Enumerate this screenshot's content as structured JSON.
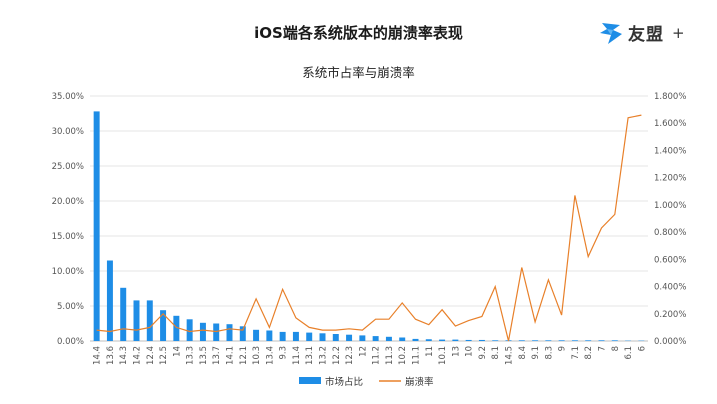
{
  "header": {
    "title": "iOS端各系统版本的崩溃率表现",
    "brand_name": "友盟",
    "brand_plus": "+"
  },
  "colors": {
    "bar": "#1e8de6",
    "line": "#e8802a",
    "grid": "#e4e4e4",
    "axis": "#bfbfbf",
    "brand_icon": "#1e8de6"
  },
  "icons": {
    "brand": "umeng-logo-icon"
  },
  "chart_data": {
    "type": "bar",
    "title": "系统市占率与崩溃率",
    "categories": [
      "14.4",
      "13.6",
      "14.3",
      "14.2",
      "12.4",
      "12.5",
      "14",
      "13.3",
      "13.5",
      "13.7",
      "14.1",
      "12.1",
      "10.3",
      "13.4",
      "9.3",
      "11.4",
      "13.1",
      "13.2",
      "12.2",
      "12.3",
      "12",
      "11.2",
      "11.3",
      "10.2",
      "11.1",
      "11",
      "10.1",
      "13",
      "10",
      "9.2",
      "8.1",
      "14.5",
      "8.4",
      "9.1",
      "8.3",
      "9",
      "7.1",
      "8.2",
      "7",
      "8",
      "6.1",
      "6"
    ],
    "series": [
      {
        "name": "市场占比",
        "type": "bar",
        "axis": "left",
        "values": [
          32.8,
          11.5,
          7.6,
          5.8,
          5.8,
          4.4,
          3.6,
          3.1,
          2.6,
          2.5,
          2.4,
          2.1,
          1.6,
          1.5,
          1.3,
          1.3,
          1.2,
          1.1,
          1.0,
          0.9,
          0.8,
          0.7,
          0.6,
          0.5,
          0.3,
          0.25,
          0.2,
          0.2,
          0.15,
          0.15,
          0.1,
          0.1,
          0.1,
          0.1,
          0.1,
          0.1,
          0.1,
          0.1,
          0.1,
          0.1,
          0.05,
          0.05
        ]
      },
      {
        "name": "崩溃率",
        "type": "line",
        "axis": "right",
        "values": [
          0.08,
          0.07,
          0.09,
          0.08,
          0.1,
          0.2,
          0.1,
          0.07,
          0.08,
          0.07,
          0.09,
          0.08,
          0.31,
          0.1,
          0.38,
          0.17,
          0.1,
          0.08,
          0.08,
          0.09,
          0.08,
          0.16,
          0.16,
          0.28,
          0.16,
          0.12,
          0.23,
          0.11,
          0.15,
          0.18,
          0.4,
          0.0,
          0.54,
          0.14,
          0.45,
          0.19,
          1.07,
          0.62,
          0.83,
          0.93,
          1.64,
          1.66
        ]
      }
    ],
    "y_left": {
      "min": 0,
      "max": 35,
      "step": 5,
      "format": "percent2"
    },
    "y_right": {
      "min": 0,
      "max": 1.8,
      "step": 0.2,
      "format": "percent3"
    },
    "grid": true,
    "legend_position": "bottom"
  }
}
